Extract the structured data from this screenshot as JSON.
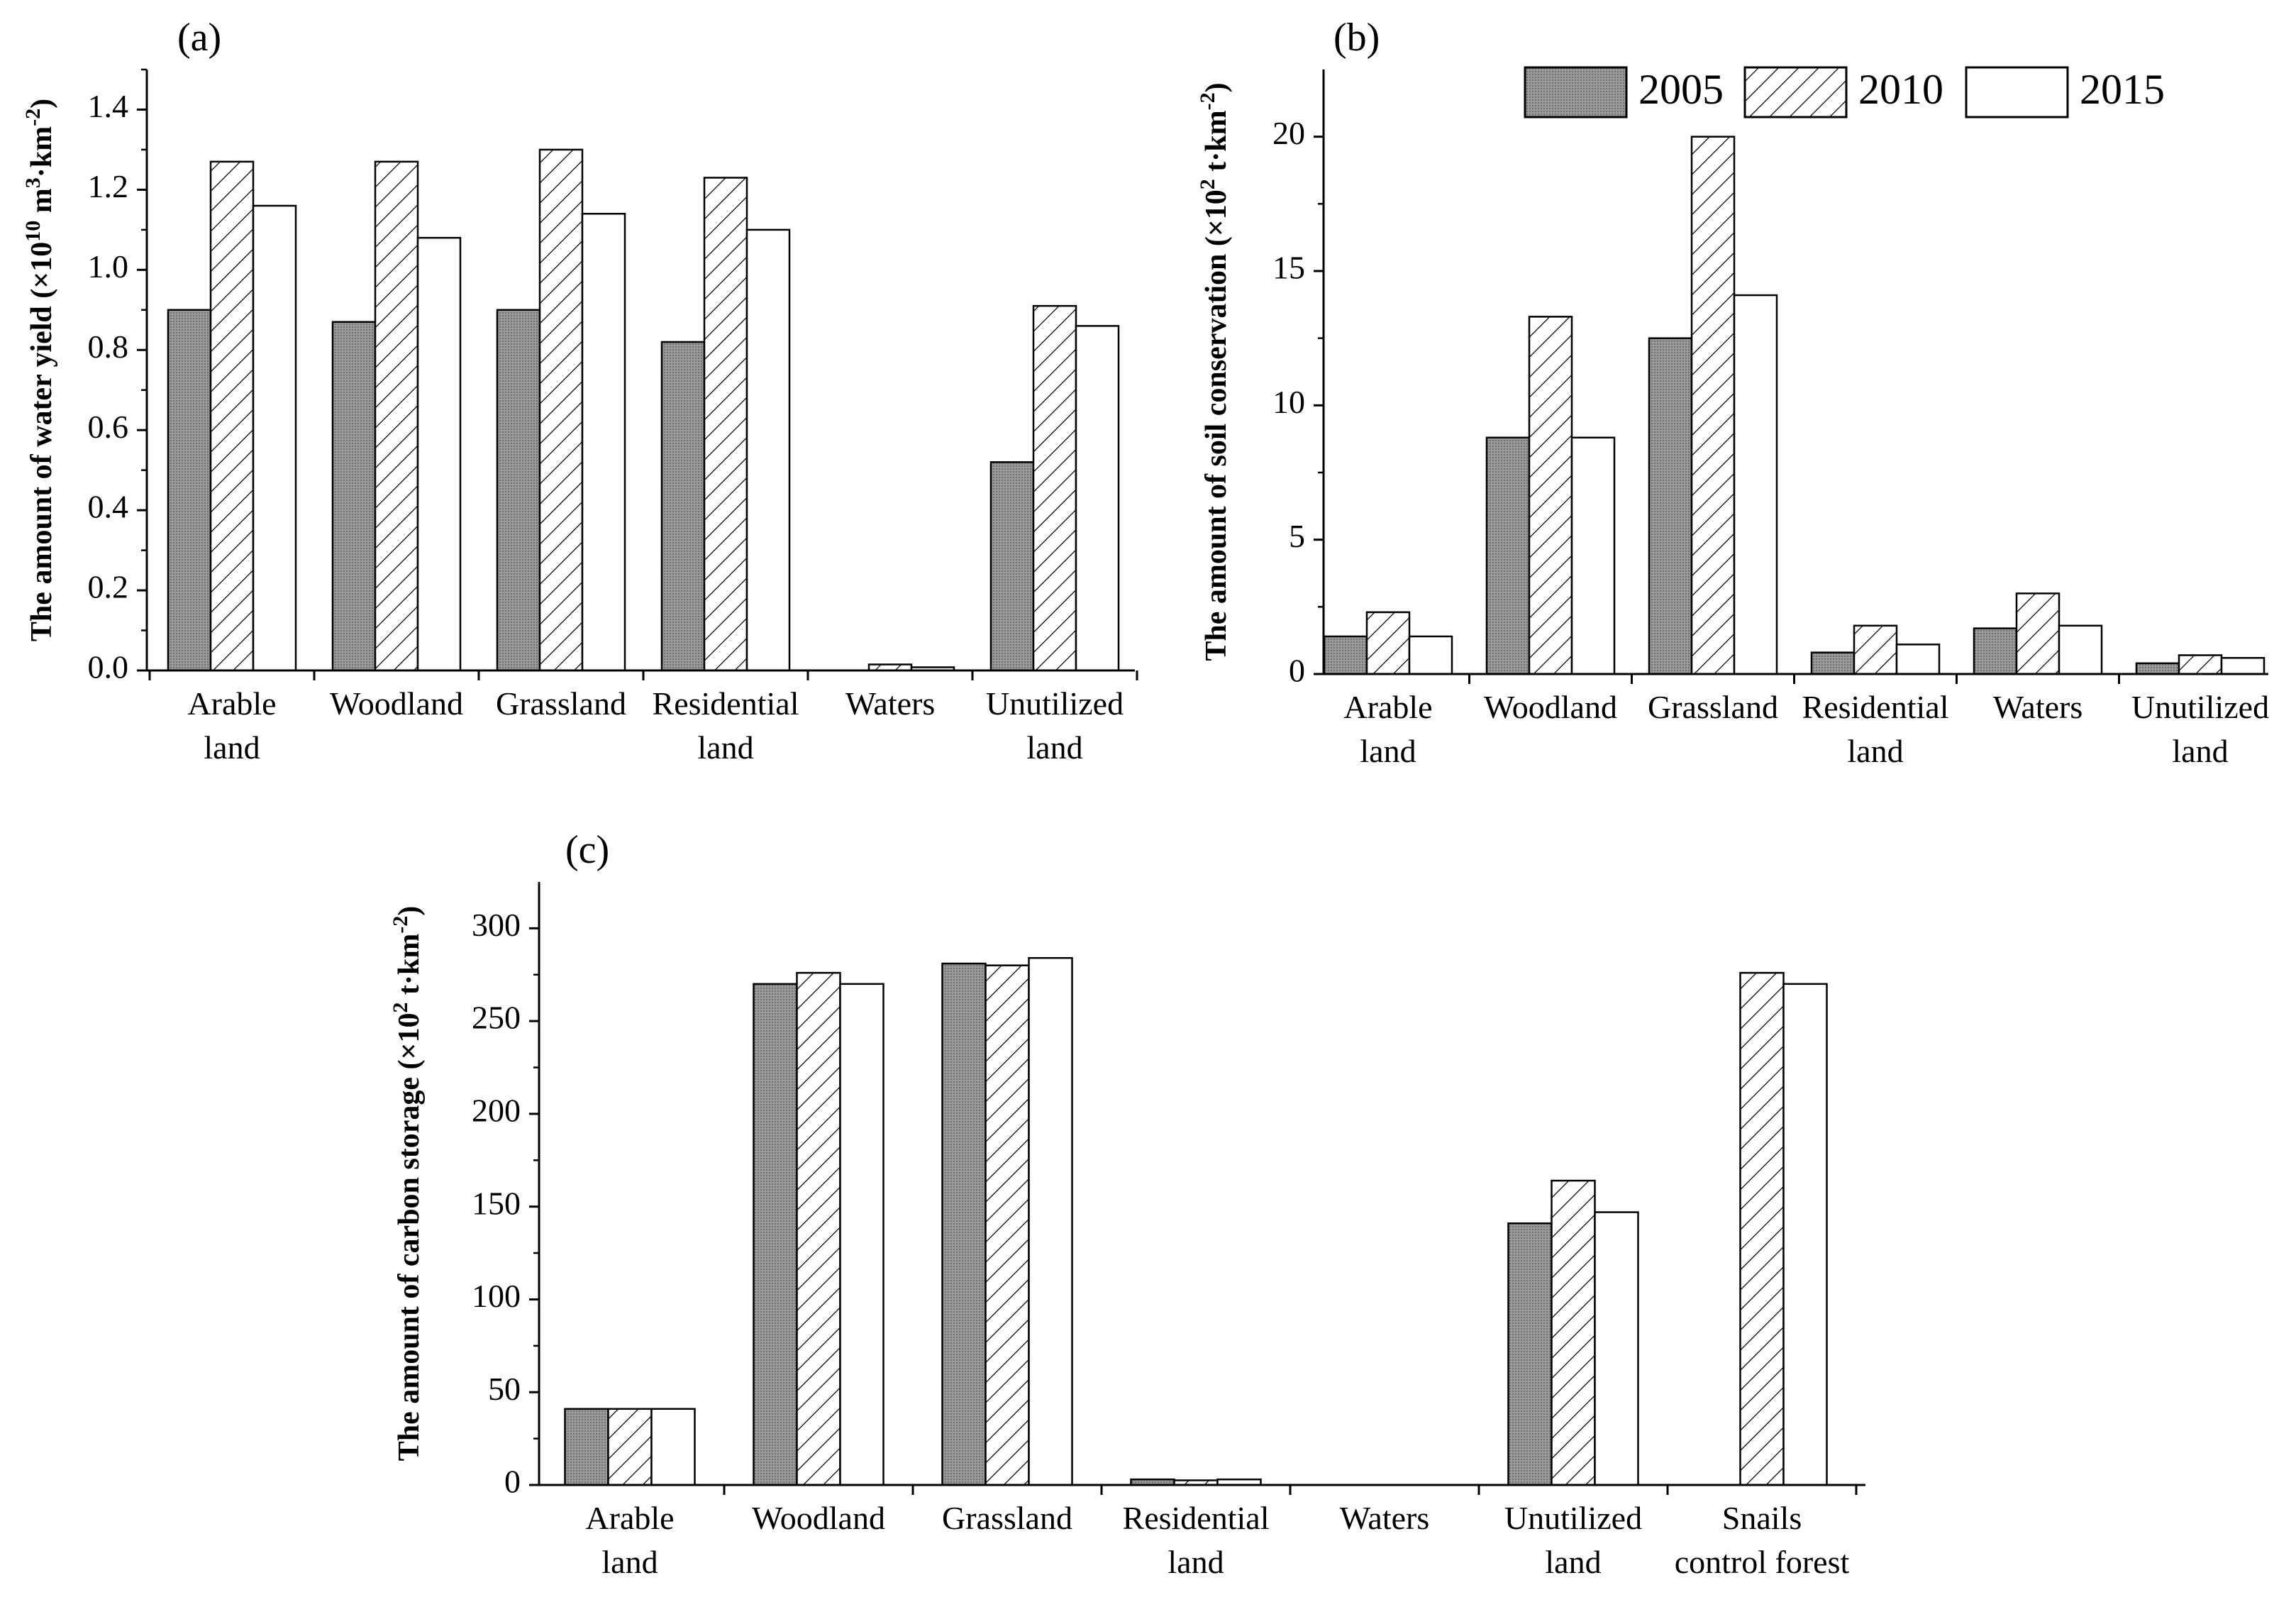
{
  "figure": {
    "colors": {
      "series_2005": "#8c8c8c",
      "series_2010": "#ffffff",
      "series_2015": "#ffffff",
      "axis": "#000000"
    },
    "legend": {
      "items": [
        "2005",
        "2010",
        "2015"
      ],
      "placement": "top-right of panel (b)"
    }
  },
  "chart_data": [
    {
      "id": "a",
      "panel_label": "(a)",
      "type": "bar",
      "categories": [
        [
          "Arable",
          "land"
        ],
        [
          "Woodland"
        ],
        [
          "Grassland"
        ],
        [
          "Residential",
          "land"
        ],
        [
          "Waters"
        ],
        [
          "Unutilized",
          "land"
        ]
      ],
      "series": [
        {
          "name": "2005",
          "values": [
            0.9,
            0.87,
            0.9,
            0.82,
            0.0,
            0.52
          ]
        },
        {
          "name": "2010",
          "values": [
            1.27,
            1.27,
            1.3,
            1.23,
            0.015,
            0.91
          ]
        },
        {
          "name": "2015",
          "values": [
            1.16,
            1.08,
            1.14,
            1.1,
            0.008,
            0.86
          ]
        }
      ],
      "ylabel": {
        "main": "The amount of water yield (×10",
        "sup1": "10",
        "mid": " m",
        "sup2": "3",
        "mid2": "·km",
        "sup3": "-2",
        "end": ")"
      },
      "ylim": [
        0,
        1.5
      ],
      "yticks": [
        "0.0",
        "0.2",
        "0.4",
        "0.6",
        "0.8",
        "1.0",
        "1.2",
        "1.4"
      ],
      "ytick_values": [
        0,
        0.2,
        0.4,
        0.6,
        0.8,
        1.0,
        1.2,
        1.4
      ],
      "yminor": 0.1
    },
    {
      "id": "b",
      "panel_label": "(b)",
      "type": "bar",
      "categories": [
        [
          "Arable",
          "land"
        ],
        [
          "Woodland"
        ],
        [
          "Grassland"
        ],
        [
          "Residential",
          "land"
        ],
        [
          "Waters"
        ],
        [
          "Unutilized",
          "land"
        ]
      ],
      "series": [
        {
          "name": "2005",
          "values": [
            1.4,
            8.8,
            12.5,
            0.8,
            1.7,
            0.4
          ]
        },
        {
          "name": "2010",
          "values": [
            2.3,
            13.3,
            20.0,
            1.8,
            3.0,
            0.7
          ]
        },
        {
          "name": "2015",
          "values": [
            1.4,
            8.8,
            14.1,
            1.1,
            1.8,
            0.6
          ]
        }
      ],
      "ylabel": {
        "main": "The amount of soil conservation (×10",
        "sup1": "2",
        "mid": " t·km",
        "sup2": "-2",
        "mid2": "",
        "sup3": "",
        "end": ")"
      },
      "ylim": [
        0,
        22.5
      ],
      "yticks": [
        "0",
        "5",
        "10",
        "15",
        "20"
      ],
      "ytick_values": [
        0,
        5,
        10,
        15,
        20
      ],
      "yminor": 2.5
    },
    {
      "id": "c",
      "panel_label": "(c)",
      "type": "bar",
      "categories": [
        [
          "Arable",
          "land"
        ],
        [
          "Woodland"
        ],
        [
          "Grassland"
        ],
        [
          "Residential",
          "land"
        ],
        [
          "Waters"
        ],
        [
          "Unutilized",
          "land"
        ],
        [
          "Snails",
          "control forest"
        ]
      ],
      "series": [
        {
          "name": "2005",
          "values": [
            41,
            270,
            281,
            3,
            0,
            141,
            0
          ]
        },
        {
          "name": "2010",
          "values": [
            41,
            276,
            280,
            2.5,
            0,
            164,
            276
          ]
        },
        {
          "name": "2015",
          "values": [
            41,
            270,
            284,
            3,
            0,
            147,
            270
          ]
        }
      ],
      "ylabel": {
        "main": "The amount of carbon storage (×10",
        "sup1": "2",
        "mid": " t·km",
        "sup2": "-2",
        "mid2": "",
        "sup3": "",
        "end": ")"
      },
      "ylim": [
        0,
        325
      ],
      "yticks": [
        "0",
        "50",
        "100",
        "150",
        "200",
        "250",
        "300"
      ],
      "ytick_values": [
        0,
        50,
        100,
        150,
        200,
        250,
        300
      ],
      "yminor": 25
    }
  ]
}
